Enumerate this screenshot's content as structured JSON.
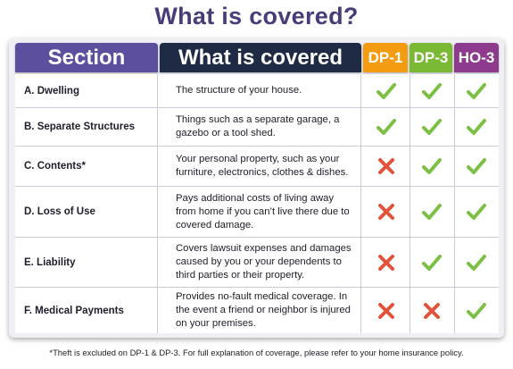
{
  "title": "What is covered?",
  "headers": {
    "section": "Section",
    "covered": "What is covered",
    "dp1": "DP-1",
    "dp3": "DP-3",
    "ho3": "HO-3"
  },
  "colors": {
    "title": "#4a3c78",
    "section_header": "#5b4f9e",
    "covered_header": "#1f2a44",
    "dp1_header": "#f39c12",
    "dp3_header": "#7bb833",
    "ho3_header": "#8e3a8d",
    "check": "#7bc043",
    "cross": "#e2533c"
  },
  "rows": [
    {
      "section": "A. Dwelling",
      "desc": "The structure of your house.",
      "dp1": "check",
      "dp3": "check",
      "ho3": "check"
    },
    {
      "section": "B. Separate Structures",
      "desc": "Things such as a separate garage, a gazebo or a tool shed.",
      "dp1": "check",
      "dp3": "check",
      "ho3": "check"
    },
    {
      "section": "C. Contents*",
      "desc": "Your personal property, such as your furniture, electronics, clothes & dishes.",
      "dp1": "cross",
      "dp3": "check",
      "ho3": "check"
    },
    {
      "section": "D. Loss of Use",
      "desc": "Pays additional costs of living away from home if you can’t live there due to covered damage.",
      "dp1": "cross",
      "dp3": "check",
      "ho3": "check"
    },
    {
      "section": "E. Liability",
      "desc": "Covers lawsuit expenses and damages caused by you or your dependents to third parties or their property.",
      "dp1": "cross",
      "dp3": "check",
      "ho3": "check"
    },
    {
      "section": "F. Medical Payments",
      "desc": "Provides no-fault medical coverage. In the event a friend or neighbor is injured on your premises.",
      "dp1": "cross",
      "dp3": "cross",
      "ho3": "check"
    }
  ],
  "footnote": "*Theft is excluded on DP-1 & DP-3. For full explanation of coverage, please refer to your home insurance policy."
}
